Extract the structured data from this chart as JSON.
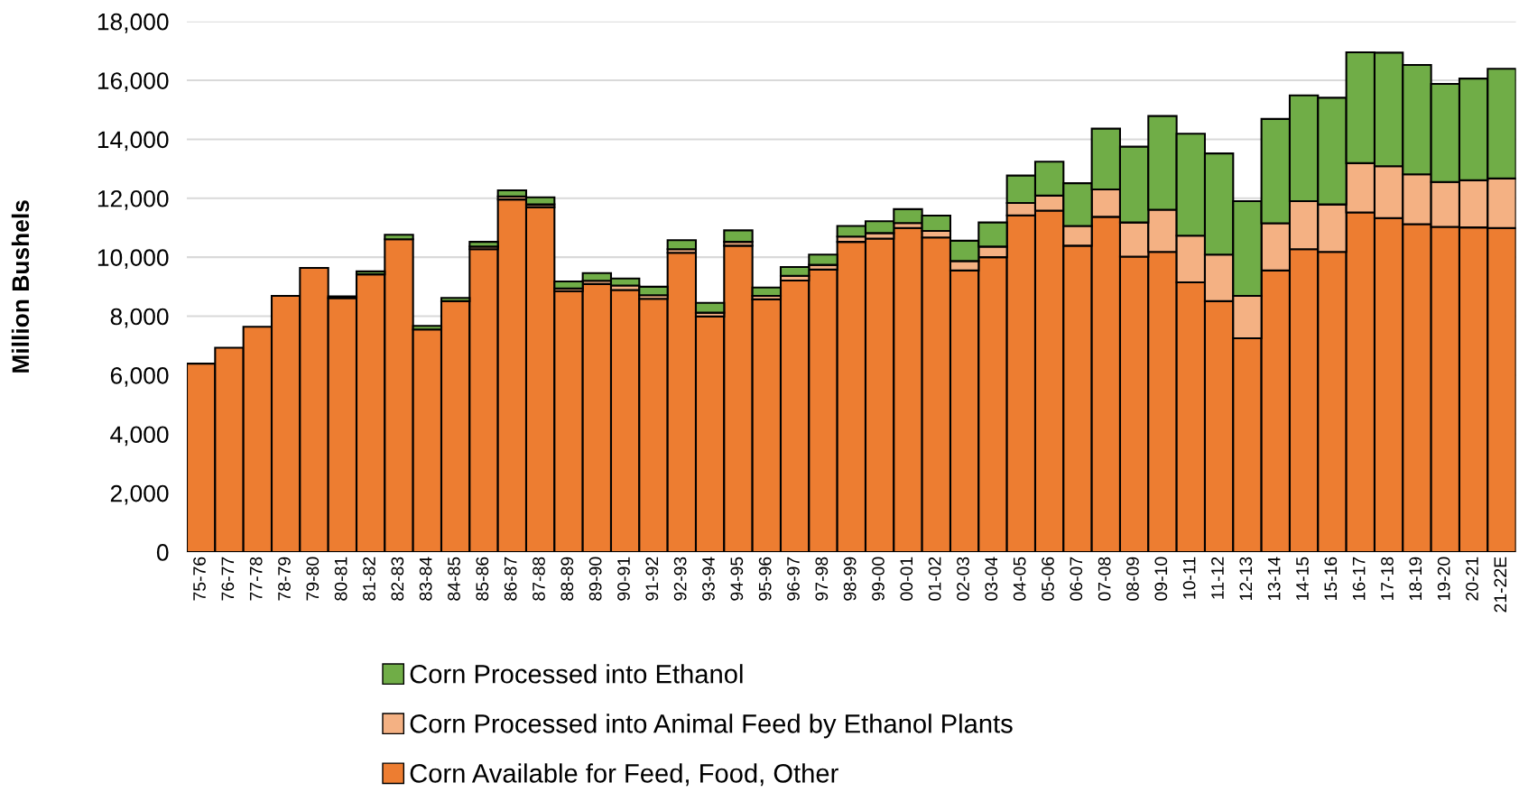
{
  "chart_data": {
    "type": "bar",
    "stacked": true,
    "ylabel": "Million Bushels",
    "categories": [
      "75-76",
      "76-77",
      "77-78",
      "78-79",
      "79-80",
      "80-81",
      "81-82",
      "82-83",
      "83-84",
      "84-85",
      "85-86",
      "86-87",
      "87-88",
      "88-89",
      "89-90",
      "90-91",
      "91-92",
      "92-93",
      "93-94",
      "94-95",
      "95-96",
      "96-97",
      "97-98",
      "98-99",
      "99-00",
      "00-01",
      "01-02",
      "02-03",
      "03-04",
      "04-05",
      "05-06",
      "06-07",
      "07-08",
      "08-09",
      "09-10",
      "10-11",
      "11-12",
      "12-13",
      "13-14",
      "14-15",
      "15-16",
      "16-17",
      "17-18",
      "18-19",
      "19-20",
      "20-21",
      "21-22E"
    ],
    "series": [
      {
        "name": "Corn Available for Feed, Food, Other",
        "color": "#ed7d31",
        "values": [
          6390,
          6930,
          7640,
          8690,
          9640,
          8610,
          9420,
          10610,
          7550,
          8510,
          10270,
          11960,
          11700,
          8850,
          9090,
          8890,
          8590,
          10150,
          7990,
          10390,
          8570,
          9210,
          9580,
          10520,
          10630,
          10990,
          10670,
          9550,
          10000,
          11420,
          11580,
          10390,
          11370,
          10020,
          10180,
          9150,
          8510,
          7250,
          9550,
          10270,
          10180,
          11520,
          11330,
          11120,
          11030,
          11010,
          10990
        ]
      },
      {
        "name": "Corn Processed into Animal Feed by Ethanol Plants",
        "color": "#f4b183",
        "values": [
          null,
          null,
          null,
          null,
          null,
          null,
          null,
          null,
          null,
          null,
          90,
          100,
          90,
          90,
          110,
          150,
          120,
          120,
          130,
          130,
          120,
          160,
          160,
          180,
          190,
          170,
          220,
          320,
          360,
          420,
          510,
          670,
          930,
          1160,
          1430,
          1580,
          1580,
          1440,
          1600,
          1630,
          1610,
          1670,
          1760,
          1690,
          1520,
          1600,
          1680
        ]
      },
      {
        "name": "Corn Processed into Ethanol",
        "color": "#70ad47",
        "values": [
          null,
          null,
          null,
          null,
          null,
          60,
          100,
          150,
          120,
          110,
          160,
          210,
          240,
          240,
          260,
          240,
          290,
          310,
          330,
          390,
          280,
          300,
          350,
          360,
          400,
          470,
          520,
          690,
          820,
          930,
          1150,
          1450,
          2060,
          2570,
          3180,
          3460,
          3430,
          3210,
          3540,
          3590,
          3620,
          3760,
          3850,
          3710,
          3330,
          3450,
          3720
        ]
      }
    ],
    "ylim": [
      0,
      18000
    ],
    "yticks": [
      0,
      {
        "value": 2000,
        "label": "2,000"
      },
      {
        "value": 4000,
        "label": "4,000"
      },
      {
        "value": 6000,
        "label": "6,000"
      },
      {
        "value": 8000,
        "label": "8,000"
      },
      {
        "value": 10000,
        "label": "10,000"
      },
      {
        "value": 12000,
        "label": "12,000"
      },
      {
        "value": 14000,
        "label": "14,000"
      },
      {
        "value": 16000,
        "label": "16,000"
      },
      {
        "value": 18000,
        "label": "18,000"
      }
    ],
    "grid": "y",
    "legend": "bottom"
  }
}
